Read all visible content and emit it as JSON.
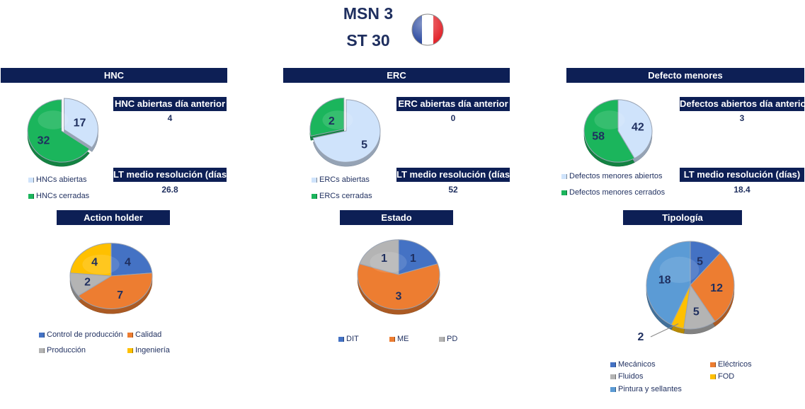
{
  "header": {
    "line1": "MSN 3",
    "line2": "ST 30"
  },
  "flag": {
    "name": "france-flag-icon",
    "colors": [
      "#1f3f9a",
      "#ffffff",
      "#e3262d"
    ]
  },
  "colors": {
    "header_bg": "#0d1f55",
    "open_light_blue": "#cfe3fb",
    "closed_green": "#1bb55c",
    "blue": "#4472c4",
    "orange": "#ed7d31",
    "gray": "#b4b4b4",
    "yellow": "#ffc000",
    "light_blue": "#5b9bd5"
  },
  "panels": {
    "hnc": {
      "title": "HNC",
      "kpi1_label": "HNC abiertas día anterior",
      "kpi1_value": "4",
      "kpi2_label": "LT medio resolución (días)",
      "kpi2_value": "26.8"
    },
    "erc": {
      "title": "ERC",
      "kpi1_label": "ERC abiertas día anterior",
      "kpi1_value": "0",
      "kpi2_label": "LT medio resolución (días)",
      "kpi2_value": "52"
    },
    "defectos": {
      "title": "Defecto menores",
      "kpi1_label": "Defectos abiertos día anterior",
      "kpi1_value": "3",
      "kpi2_label": "LT medio resolución (días)",
      "kpi2_value": "18.4"
    },
    "action": {
      "title": "Action holder"
    },
    "estado": {
      "title": "Estado"
    },
    "tipologia": {
      "title": "Tipología"
    }
  },
  "chart_data": [
    {
      "id": "hnc",
      "type": "pie",
      "title": "HNC",
      "categories": [
        "HNCs abiertas",
        "HNCs cerradas"
      ],
      "values": [
        17,
        32
      ],
      "colors": [
        "#cfe3fb",
        "#1bb55c"
      ],
      "legend_placement": "bottom"
    },
    {
      "id": "erc",
      "type": "pie",
      "title": "ERC",
      "categories": [
        "ERCs abiertas",
        "ERCs cerradas"
      ],
      "values": [
        5,
        2
      ],
      "colors": [
        "#cfe3fb",
        "#1bb55c"
      ],
      "legend_placement": "bottom"
    },
    {
      "id": "defectos",
      "type": "pie",
      "title": "Defecto menores",
      "categories": [
        "Defectos menores abiertos",
        "Defectos menores cerrados"
      ],
      "values": [
        42,
        58
      ],
      "colors": [
        "#cfe3fb",
        "#1bb55c"
      ],
      "legend_placement": "bottom"
    },
    {
      "id": "action",
      "type": "pie",
      "title": "Action holder",
      "categories": [
        "Control de producción",
        "Calidad",
        "Producción",
        "Ingeniería"
      ],
      "values": [
        4,
        7,
        2,
        4
      ],
      "colors": [
        "#4472c4",
        "#ed7d31",
        "#b4b4b4",
        "#ffc000"
      ],
      "legend_placement": "bottom"
    },
    {
      "id": "estado",
      "type": "pie",
      "title": "Estado",
      "categories": [
        "DIT",
        "ME",
        "PD"
      ],
      "values": [
        1,
        3,
        1
      ],
      "colors": [
        "#4472c4",
        "#ed7d31",
        "#b4b4b4"
      ],
      "legend_placement": "bottom"
    },
    {
      "id": "tipologia",
      "type": "pie",
      "title": "Tipología",
      "categories": [
        "Mecánicos",
        "Eléctricos",
        "Fluidos",
        "FOD",
        "Pintura y sellantes"
      ],
      "values": [
        5,
        12,
        5,
        2,
        18
      ],
      "colors": [
        "#4472c4",
        "#ed7d31",
        "#b4b4b4",
        "#ffc000",
        "#5b9bd5"
      ],
      "legend_placement": "bottom"
    }
  ]
}
